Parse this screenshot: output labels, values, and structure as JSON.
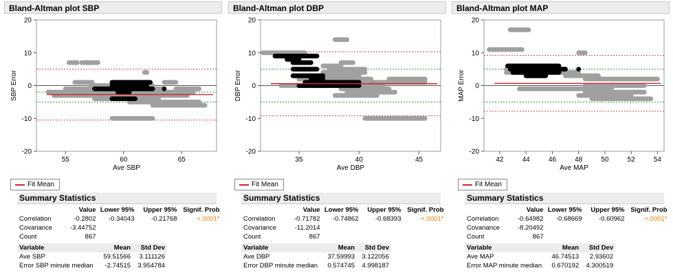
{
  "panels": [
    {
      "title": "Bland-Altman plot SBP",
      "legend_label": "Fit Mean",
      "summary_title": "Summary Statistics",
      "stats_headers": [
        "",
        "Value",
        "Lower 95%",
        "Upper 95%",
        "Signif. Prob"
      ],
      "stats_rows": [
        [
          "Correlation",
          "-0.2802",
          "-0.34043",
          "-0.21768",
          "<.0001*"
        ],
        [
          "Covariance",
          "-3.44752",
          "",
          "",
          ""
        ],
        [
          "Count",
          "867",
          "",
          "",
          ""
        ]
      ],
      "var_headers": [
        "Variable",
        "Mean",
        "Std Dev"
      ],
      "var_rows": [
        [
          "Ave SBP",
          "59.51566",
          "3.111126"
        ],
        [
          "Error SBP minute median",
          "-2.74515",
          "3.954784"
        ]
      ]
    },
    {
      "title": "Bland-Altman plot DBP",
      "legend_label": "Fit Mean",
      "summary_title": "Summary Statistics",
      "stats_headers": [
        "",
        "Value",
        "Lower 95%",
        "Upper 95%",
        "Signif. Prob"
      ],
      "stats_rows": [
        [
          "Correlation",
          "-0.71782",
          "-0.74862",
          "-0.68393",
          "<.0001*"
        ],
        [
          "Covariance",
          "-11.2014",
          "",
          "",
          ""
        ],
        [
          "Count",
          "867",
          "",
          "",
          ""
        ]
      ],
      "var_headers": [
        "Variable",
        "Mean",
        "Std Dev"
      ],
      "var_rows": [
        [
          "Ave DBP",
          "37.59993",
          "3.122056"
        ],
        [
          "Error DBP minute median",
          "0.574745",
          "4.998187"
        ]
      ]
    },
    {
      "title": "Bland-Altman plot MAP",
      "legend_label": "Fit Mean",
      "summary_title": "Summary Statistics",
      "stats_headers": [
        "",
        "Value",
        "Lower 95%",
        "Upper 95%",
        "Signif. Prob"
      ],
      "stats_rows": [
        [
          "Correlation",
          "-0.64982",
          "-0.68669",
          "-0.60962",
          "<.0001*"
        ],
        [
          "Covariance",
          "-8.20492",
          "",
          "",
          ""
        ],
        [
          "Count",
          "867",
          "",
          "",
          ""
        ]
      ],
      "var_headers": [
        "Variable",
        "Mean",
        "Std Dev"
      ],
      "var_rows": [
        [
          "Ave MAP",
          "46.74513",
          "2.93602"
        ],
        [
          "Error MAP minute median",
          "0.670192",
          "4.300519"
        ]
      ]
    }
  ],
  "colors": {
    "fit_mean": "#c8272d",
    "limits": "#d04050",
    "ci": "#2ca02c",
    "grey_points": "#a0a0a0",
    "black_points": "#000000",
    "signif": "#e07b00"
  },
  "chart_data": [
    {
      "type": "scatter",
      "title": "Bland-Altman plot SBP",
      "xlabel": "Ave SBP",
      "ylabel": "SBP Error",
      "xlim": [
        52.5,
        68
      ],
      "ylim": [
        -20,
        20
      ],
      "xticks": [
        55,
        60,
        65
      ],
      "yticks": [
        -20,
        -10,
        0,
        10,
        20
      ],
      "fit_mean": -2.745,
      "limits_of_agreement": [
        -10.5,
        5.0
      ],
      "ci_lines": [
        -2.0,
        -5.0
      ],
      "grey_segments": [
        {
          "y": 7,
          "x": [
            55.3,
            56.0
          ]
        },
        {
          "y": 7,
          "x": [
            56.4,
            57.8
          ]
        },
        {
          "y": 1,
          "x": [
            55.8,
            57.3
          ]
        },
        {
          "y": 0,
          "x": [
            57.2,
            62.5
          ]
        },
        {
          "y": -1,
          "x": [
            55.0,
            63.5
          ]
        },
        {
          "y": -2,
          "x": [
            53.5,
            66.0
          ]
        },
        {
          "y": -3,
          "x": [
            54.0,
            65.5
          ]
        },
        {
          "y": -4,
          "x": [
            57.5,
            63.0
          ]
        },
        {
          "y": -5,
          "x": [
            60.5,
            66.5
          ]
        },
        {
          "y": -6,
          "x": [
            62.5,
            67.0
          ]
        },
        {
          "y": -10,
          "x": [
            59.0,
            62.5
          ]
        },
        {
          "y": 1,
          "x": [
            63.5,
            64.5
          ]
        },
        {
          "y": -1,
          "x": [
            64.5,
            66.5
          ]
        },
        {
          "y": 4,
          "x": [
            61.8,
            62.0
          ]
        }
      ],
      "black_segments": [
        {
          "y": 1,
          "x": [
            59.0,
            62.3
          ]
        },
        {
          "y": 0,
          "x": [
            59.0,
            62.0
          ]
        },
        {
          "y": -1,
          "x": [
            57.5,
            62.5
          ]
        },
        {
          "y": -2,
          "x": [
            59.5,
            60.5
          ]
        },
        {
          "y": -4,
          "x": [
            59.0,
            61.0
          ]
        },
        {
          "y": -1,
          "x": [
            63.5,
            63.6
          ]
        }
      ]
    },
    {
      "type": "scatter",
      "title": "Bland-Altman plot DBP",
      "xlabel": "Ave DBP",
      "ylabel": "DBP Error",
      "xlim": [
        31.8,
        46.8
      ],
      "ylim": [
        -20,
        20
      ],
      "xticks": [
        35,
        40,
        45
      ],
      "yticks": [
        -20,
        -10,
        0,
        10,
        20
      ],
      "fit_mean": 0.575,
      "limits_of_agreement": [
        -9.2,
        10.3
      ],
      "ci_lines": [
        5.0,
        -5.0
      ],
      "grey_segments": [
        {
          "y": 10,
          "x": [
            32.0,
            35.5
          ]
        },
        {
          "y": 9,
          "x": [
            33.5,
            36.0
          ]
        },
        {
          "y": 14,
          "x": [
            38.0,
            39.0
          ]
        },
        {
          "y": 7,
          "x": [
            38.5,
            39.5
          ]
        },
        {
          "y": 6,
          "x": [
            37.0,
            38.5
          ]
        },
        {
          "y": 5,
          "x": [
            37.5,
            40.5
          ]
        },
        {
          "y": 4,
          "x": [
            37.0,
            40.5
          ]
        },
        {
          "y": 3,
          "x": [
            37.0,
            40.0
          ]
        },
        {
          "y": 2,
          "x": [
            35.0,
            41.0
          ]
        },
        {
          "y": 1,
          "x": [
            36.0,
            45.5
          ]
        },
        {
          "y": 0,
          "x": [
            33.5,
            42.0
          ]
        },
        {
          "y": -1,
          "x": [
            38.5,
            42.5
          ]
        },
        {
          "y": -2,
          "x": [
            39.0,
            43.0
          ]
        },
        {
          "y": -3,
          "x": [
            38.0,
            41.5
          ]
        },
        {
          "y": 2,
          "x": [
            42.5,
            45.5
          ]
        },
        {
          "y": -10,
          "x": [
            40.5,
            45.5
          ]
        }
      ],
      "black_segments": [
        {
          "y": 9,
          "x": [
            33.0,
            36.5
          ]
        },
        {
          "y": 8,
          "x": [
            34.0,
            35.0
          ]
        },
        {
          "y": 7,
          "x": [
            34.5,
            36.0
          ]
        },
        {
          "y": 5,
          "x": [
            34.5,
            36.5
          ]
        },
        {
          "y": 3,
          "x": [
            34.5,
            37.0
          ]
        },
        {
          "y": 2,
          "x": [
            36.0,
            37.0
          ]
        },
        {
          "y": 1,
          "x": [
            35.5,
            40.0
          ]
        },
        {
          "y": 0,
          "x": [
            35.0,
            40.0
          ]
        }
      ]
    },
    {
      "type": "scatter",
      "title": "Bland-Altman plot MAP",
      "xlabel": "Ave MAP",
      "ylabel": "MAP Error",
      "xlim": [
        40.8,
        54.5
      ],
      "ylim": [
        -20,
        20
      ],
      "xticks": [
        42,
        44,
        46,
        48,
        50,
        52,
        54
      ],
      "yticks": [
        -20,
        -10,
        0,
        10,
        20
      ],
      "fit_mean": 0.67,
      "limits_of_agreement": [
        -7.8,
        9.2
      ],
      "ci_lines": [
        5.0,
        -5.0
      ],
      "grey_segments": [
        {
          "y": 17,
          "x": [
            42.8,
            44.2
          ]
        },
        {
          "y": 11,
          "x": [
            41.2,
            43.7
          ]
        },
        {
          "y": 10,
          "x": [
            48.0,
            48.5
          ]
        },
        {
          "y": 5,
          "x": [
            42.5,
            47.0
          ]
        },
        {
          "y": 4,
          "x": [
            42.5,
            48.0
          ]
        },
        {
          "y": 3,
          "x": [
            47.0,
            49.5
          ]
        },
        {
          "y": 2,
          "x": [
            48.5,
            54.0
          ]
        },
        {
          "y": -1,
          "x": [
            43.5,
            50.5
          ]
        },
        {
          "y": -2,
          "x": [
            48.5,
            53.0
          ]
        },
        {
          "y": -3,
          "x": [
            48.0,
            52.0
          ]
        },
        {
          "y": -4,
          "x": [
            49.0,
            53.5
          ]
        },
        {
          "y": 0,
          "x": [
            48.5,
            53.0
          ]
        }
      ],
      "black_segments": [
        {
          "y": 6,
          "x": [
            42.6,
            46.5
          ]
        },
        {
          "y": 5,
          "x": [
            42.8,
            47.0
          ]
        },
        {
          "y": 4,
          "x": [
            43.0,
            46.5
          ]
        },
        {
          "y": 3,
          "x": [
            44.0,
            45.5
          ]
        },
        {
          "y": 5,
          "x": [
            48.0,
            48.1
          ]
        }
      ]
    }
  ]
}
